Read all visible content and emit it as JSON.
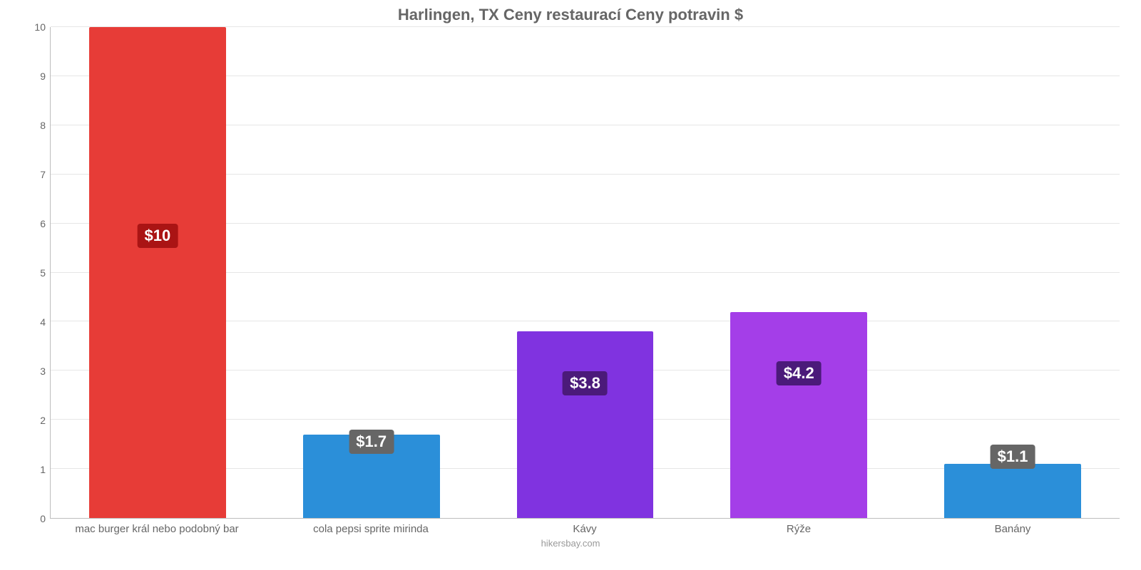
{
  "chart": {
    "type": "bar",
    "title": "Harlingen, TX Ceny restaurací Ceny potravin $",
    "title_fontsize": 22,
    "title_color": "#666666",
    "attribution": "hikersbay.com",
    "attribution_fontsize": 13,
    "attribution_color": "#999999",
    "background_color": "#ffffff",
    "axis_line_color": "#bdbdbd",
    "grid_color": "#e6e6e6",
    "tick_label_color": "#666666",
    "tick_label_fontsize": 14,
    "x_label_fontsize": 15,
    "ylim": [
      0,
      10
    ],
    "ytick_step": 1,
    "yticks": [
      0,
      1,
      2,
      3,
      4,
      5,
      6,
      7,
      8,
      9,
      10
    ],
    "bar_width_pct": 64,
    "value_label_fontsize": 22,
    "categories": [
      "mac burger král nebo podobný bar",
      "cola pepsi sprite mirinda",
      "Kávy",
      "Rýže",
      "Banány"
    ],
    "values": [
      10,
      1.7,
      3.8,
      4.2,
      1.1
    ],
    "value_labels": [
      "$10",
      "$1.7",
      "$3.8",
      "$4.2",
      "$1.1"
    ],
    "bar_colors": [
      "#e73c37",
      "#2b8fd9",
      "#8033e0",
      "#a43ee8",
      "#2b8fd9"
    ],
    "badge_colors": [
      "#aa1414",
      "#666666",
      "#4b1a7a",
      "#4b1a7a",
      "#666666"
    ],
    "badge_offsets_from_bottom_pct": [
      55,
      13,
      25,
      27,
      10
    ]
  }
}
